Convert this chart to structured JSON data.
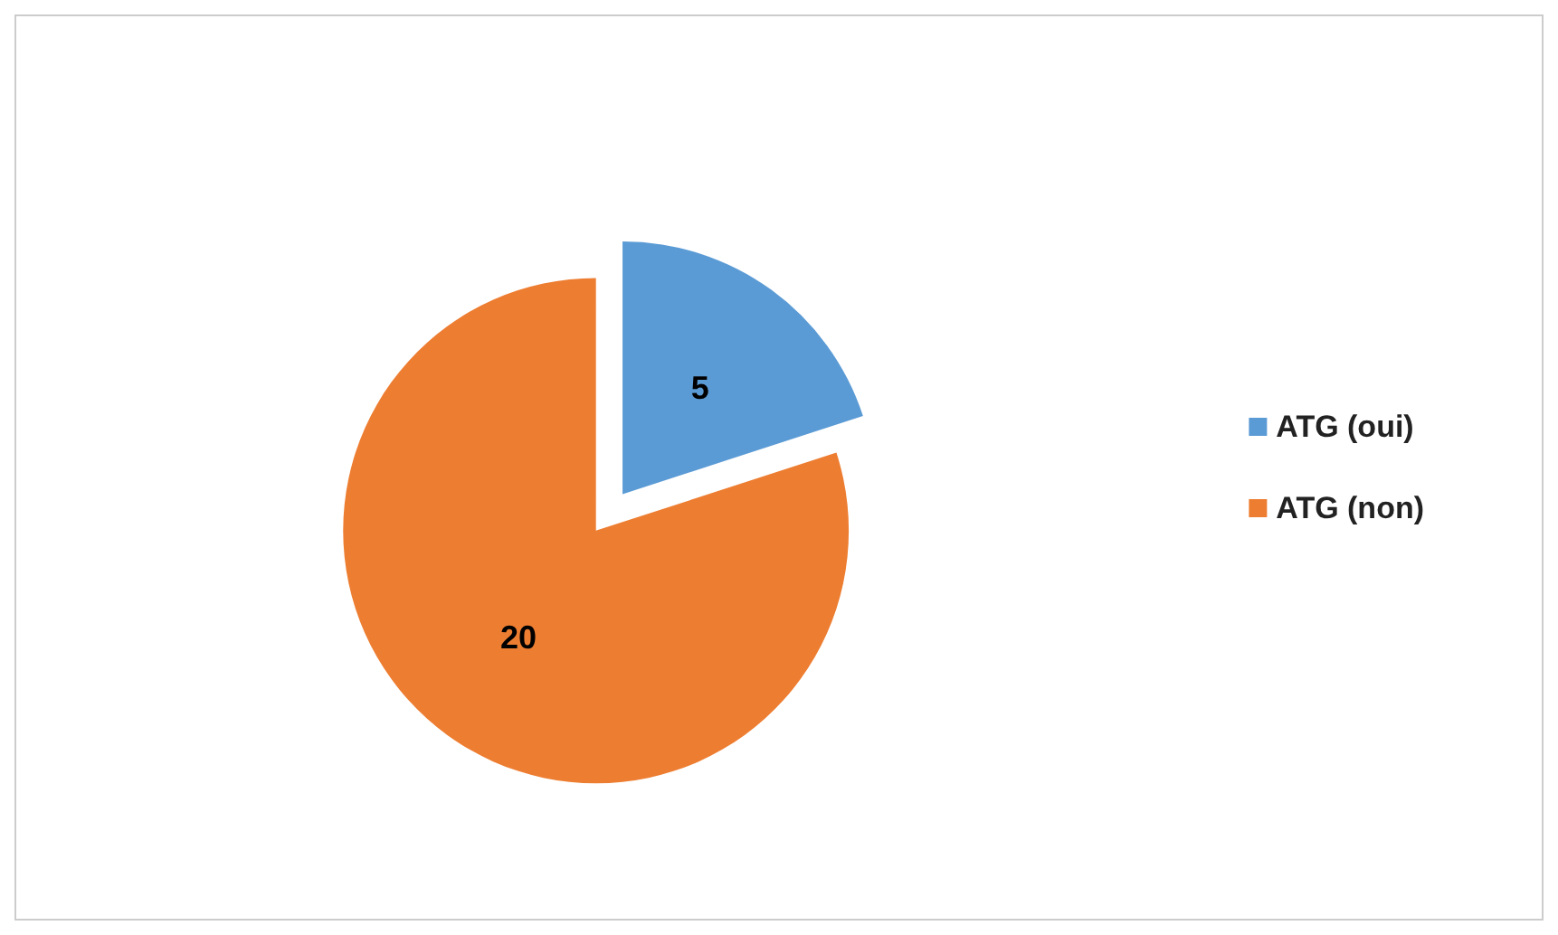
{
  "chart_data": {
    "type": "pie",
    "categories": [
      "ATG (oui)",
      "ATG (non)"
    ],
    "values": [
      5,
      20
    ],
    "colors": [
      "#5b9bd5",
      "#ed7d31"
    ],
    "data_labels": true,
    "legend": "right"
  }
}
